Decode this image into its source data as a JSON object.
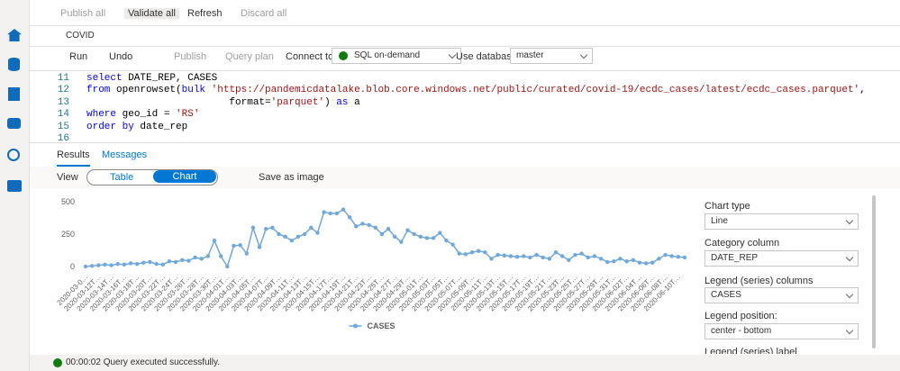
{
  "toolbar": {
    "publish_all": "Publish all",
    "validate_all": "Validate all",
    "refresh": "Refresh",
    "discard_all": "Discard all"
  },
  "tab": {
    "title": "COVID"
  },
  "editor_toolbar": {
    "run": "Run",
    "undo": "Undo",
    "publish": "Publish",
    "query_plan": "Query plan",
    "connect_to_label": "Connect to",
    "connect_to_value": "SQL on-demand",
    "use_database_label": "Use database",
    "database_value": "master"
  },
  "code": {
    "lines": [
      {
        "number": 11,
        "tokens": [
          {
            "text": "select",
            "color": "#0000ff"
          },
          {
            "text": " DATE_REP, CASES",
            "color": "#000000"
          }
        ]
      },
      {
        "number": 12,
        "tokens": [
          {
            "text": "from",
            "color": "#0000ff"
          },
          {
            "text": " openrowset(",
            "color": "#000000"
          },
          {
            "text": "bulk",
            "color": "#0000ff"
          },
          {
            "text": " ",
            "color": "#000000"
          },
          {
            "text": "'https://pandemicdatalake.blob.core.windows.net/public/curated/covid-19/ecdc_cases/latest/ecdc_cases.parquet'",
            "color": "#a31515"
          },
          {
            "text": ",",
            "color": "#000000"
          }
        ]
      },
      {
        "number": 13,
        "tokens": [
          {
            "text": "                        format=",
            "color": "#000000"
          },
          {
            "text": "'parquet'",
            "color": "#a31515"
          },
          {
            "text": ") ",
            "color": "#000000"
          },
          {
            "text": "as",
            "color": "#0000ff"
          },
          {
            "text": " a",
            "color": "#000000"
          }
        ]
      },
      {
        "number": 14,
        "tokens": [
          {
            "text": "where",
            "color": "#0000ff"
          },
          {
            "text": " geo_id = ",
            "color": "#000000"
          },
          {
            "text": "'RS'",
            "color": "#a31515"
          }
        ]
      },
      {
        "number": 15,
        "tokens": [
          {
            "text": "order by",
            "color": "#0000ff"
          },
          {
            "text": " date_rep",
            "color": "#000000"
          }
        ]
      },
      {
        "number": 16,
        "tokens": []
      }
    ]
  },
  "results": {
    "tabs": [
      "Results",
      "Messages"
    ],
    "view_label": "View",
    "view_options": [
      "Table",
      "Chart"
    ],
    "save_as_image": "Save as image"
  },
  "chart_data": {
    "type": "line",
    "ylim": [
      0,
      500
    ],
    "yticks": [
      0,
      250,
      500
    ],
    "grid": false,
    "legend": "bottom",
    "categories": [
      "2020-03-0…",
      null,
      "2020-03-12T…",
      null,
      "2020-03-14T…",
      null,
      "2020-03-16T…",
      null,
      "2020-03-18T…",
      null,
      "2020-03-20T…",
      null,
      "2020-03-22T…",
      null,
      "2020-03-24T…",
      null,
      "2020-03-26T…",
      null,
      "2020-03-28T…",
      null,
      "2020-03-30T…",
      null,
      "2020-04-01T…",
      null,
      "2020-04-03T…",
      null,
      "2020-04-05T…",
      null,
      "2020-04-07T…",
      null,
      "2020-04-09T…",
      null,
      "2020-04-11T…",
      null,
      "2020-04-13T…",
      null,
      "2020-04-15T…",
      null,
      "2020-04-17T…",
      null,
      "2020-04-19T…",
      null,
      "2020-04-21T…",
      null,
      "2020-04-23T…",
      null,
      "2020-04-25T…",
      null,
      "2020-04-27T…",
      null,
      "2020-04-29T…",
      null,
      "2020-05-01T…",
      null,
      "2020-05-03T…",
      null,
      "2020-05-05T…",
      null,
      "2020-05-07T…",
      null,
      "2020-05-09T…",
      null,
      "2020-05-11T…",
      null,
      "2020-05-13T…",
      null,
      "2020-05-15T…",
      null,
      "2020-05-17T…",
      null,
      "2020-05-19T…",
      null,
      "2020-05-21T…",
      null,
      "2020-05-23T…",
      null,
      "2020-05-25T…",
      null,
      "2020-05-27T…",
      null,
      "2020-05-29T…",
      null,
      "2020-05-31T…",
      null,
      "2020-06-02T…",
      null,
      "2020-06-04T…",
      null,
      "2020-06-06T…",
      null,
      "2020-06-08T…",
      null,
      "2020-06-10T…",
      null
    ],
    "series": [
      {
        "name": "CASES",
        "color": "#6fa8dc",
        "values": [
          0,
          5,
          10,
          15,
          10,
          20,
          15,
          25,
          20,
          30,
          35,
          20,
          15,
          40,
          35,
          50,
          45,
          70,
          60,
          80,
          200,
          80,
          0,
          160,
          165,
          100,
          300,
          150,
          290,
          300,
          250,
          230,
          200,
          230,
          250,
          300,
          260,
          420,
          410,
          410,
          440,
          380,
          310,
          330,
          320,
          300,
          250,
          290,
          230,
          190,
          280,
          250,
          230,
          220,
          220,
          260,
          200,
          170,
          100,
          95,
          110,
          120,
          110,
          60,
          90,
          85,
          80,
          75,
          80,
          70,
          90,
          70,
          60,
          110,
          80,
          50,
          90,
          100,
          70,
          80,
          60,
          35,
          40,
          60,
          40,
          50,
          30,
          25,
          30,
          60,
          90,
          80,
          75,
          70
        ]
      }
    ]
  },
  "settings_panel": {
    "chart_type_label": "Chart type",
    "chart_type": "Line",
    "category_column_label": "Category column",
    "category_column": "DATE_REP",
    "legend_columns_label": "Legend (series) columns",
    "legend_columns": "CASES",
    "legend_position_label": "Legend position:",
    "legend_position": "center - bottom",
    "legend_label_label": "Legend (series) label"
  },
  "status": {
    "message": "00:00:02 Query executed successfully."
  }
}
